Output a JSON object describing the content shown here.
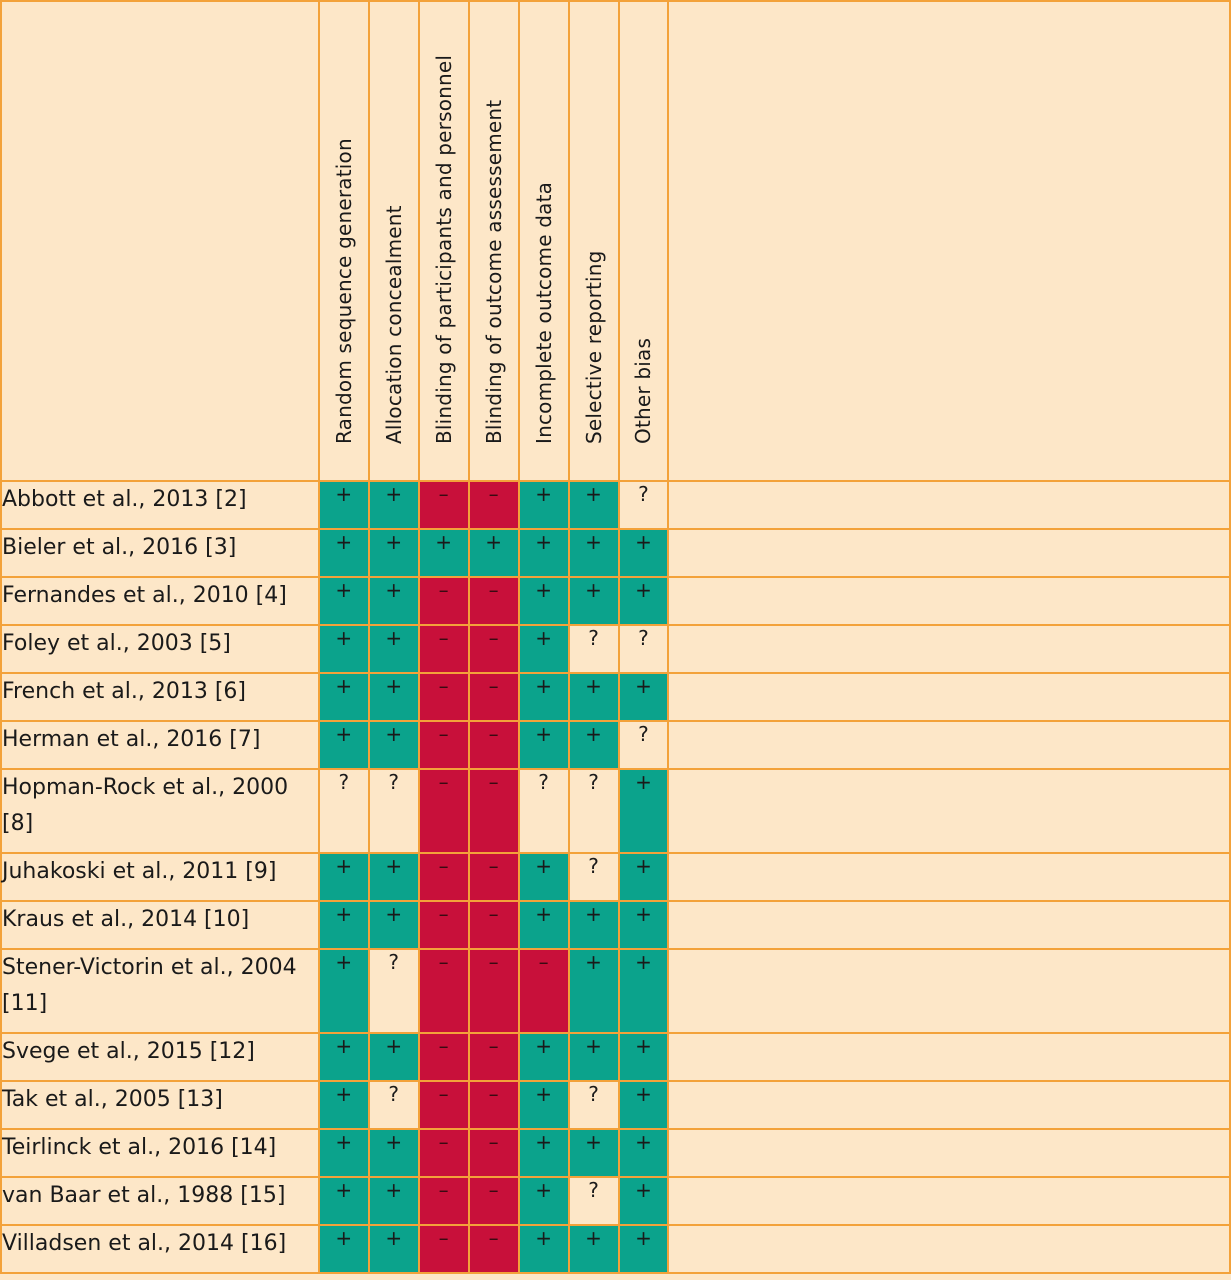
{
  "columns": [
    "Random sequence generation",
    "Allocation concealment",
    "Blinding of participants and personnel",
    "Blinding of outcome assessement",
    "Incomplete outcome data",
    "Selective reporting",
    "Other bias"
  ],
  "legend_colors": {
    "low": "#0BA38C",
    "high": "#C8103A",
    "unclear": "#FDE7C8"
  },
  "rows": [
    {
      "study": "Abbott et al., 2013 [2]",
      "lines": 1,
      "cells": [
        "+",
        "+",
        "–",
        "–",
        "+",
        "+",
        "?"
      ]
    },
    {
      "study": "Bieler et al., 2016 [3]",
      "lines": 1,
      "cells": [
        "+",
        "+",
        "+",
        "+",
        "+",
        "+",
        "+"
      ]
    },
    {
      "study": "Fernandes et al., 2010 [4]",
      "lines": 1,
      "cells": [
        "+",
        "+",
        "–",
        "–",
        "+",
        "+",
        "+"
      ]
    },
    {
      "study": "Foley et al., 2003 [5]",
      "lines": 1,
      "cells": [
        "+",
        "+",
        "–",
        "–",
        "+",
        "?",
        "?"
      ]
    },
    {
      "study": "French et al., 2013 [6]",
      "lines": 1,
      "cells": [
        "+",
        "+",
        "–",
        "–",
        "+",
        "+",
        "+"
      ]
    },
    {
      "study": "Herman et al., 2016 [7]",
      "lines": 1,
      "cells": [
        "+",
        "+",
        "–",
        "–",
        "+",
        "+",
        "?"
      ]
    },
    {
      "study": "Hopman-Rock et al., 2000 [8]",
      "lines": 2,
      "cells": [
        "?",
        "?",
        "–",
        "–",
        "?",
        "?",
        "+"
      ]
    },
    {
      "study": "Juhakoski et al., 2011 [9]",
      "lines": 1,
      "cells": [
        "+",
        "+",
        "–",
        "–",
        "+",
        "?",
        "+"
      ]
    },
    {
      "study": "Kraus et al., 2014 [10]",
      "lines": 1,
      "cells": [
        "+",
        "+",
        "–",
        "–",
        "+",
        "+",
        "+"
      ]
    },
    {
      "study": "Stener-Victorin et al., 2004 [11]",
      "lines": 2,
      "cells": [
        "+",
        "?",
        "–",
        "–",
        "–",
        "+",
        "+"
      ]
    },
    {
      "study": "Svege et al., 2015 [12]",
      "lines": 1,
      "cells": [
        "+",
        "+",
        "–",
        "–",
        "+",
        "+",
        "+"
      ]
    },
    {
      "study": "Tak et al., 2005 [13]",
      "lines": 1,
      "cells": [
        "+",
        "?",
        "–",
        "–",
        "+",
        "?",
        "+"
      ]
    },
    {
      "study": "Teirlinck et al., 2016 [14]",
      "lines": 1,
      "cells": [
        "+",
        "+",
        "–",
        "–",
        "+",
        "+",
        "+"
      ]
    },
    {
      "study": "van Baar et al., 1988 [15]",
      "lines": 1,
      "cells": [
        "+",
        "+",
        "–",
        "–",
        "+",
        "?",
        "+"
      ]
    },
    {
      "study": "Villadsen et al., 2014 [16]",
      "lines": 1,
      "cells": [
        "+",
        "+",
        "–",
        "–",
        "+",
        "+",
        "+"
      ]
    }
  ]
}
